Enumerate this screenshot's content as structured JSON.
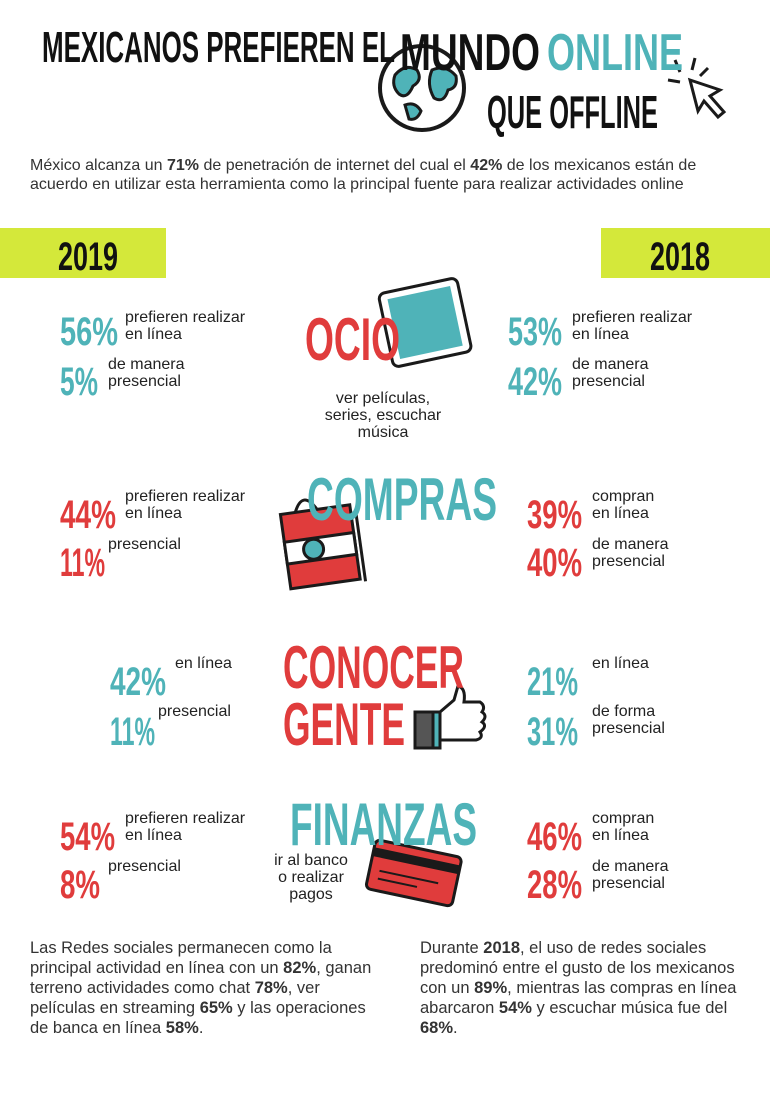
{
  "header": {
    "title_line1": "MEXICANOS PREFIEREN EL",
    "title_word1": "MUNDO",
    "title_word2": "ONLINE",
    "title_line2": "QUE OFFLINE"
  },
  "intro": [
    {
      "text": "México alcanza un ",
      "bold": false
    },
    {
      "text": "71%",
      "bold": true
    },
    {
      "text": " de penetración de internet del cual el ",
      "bold": false
    },
    {
      "text": "42%",
      "bold": true
    },
    {
      "text": " de los mexicanos están de acuerdo en utilizar esta herramienta como la principal fuente para realizar actividades online",
      "bold": false
    }
  ],
  "years": {
    "left": "2019",
    "right": "2018"
  },
  "sections": [
    {
      "title_lines": [
        "OCIO"
      ],
      "subtitle": "ver películas,\nseries, escuchar\nmúsica",
      "left": [
        {
          "value": "56%",
          "label": "prefieren realizar\nen línea"
        },
        {
          "value": "5%",
          "label": "de manera\npresencial"
        }
      ],
      "right": [
        {
          "value": "53%",
          "label": "prefieren realizar\nen línea"
        },
        {
          "value": "42%",
          "label": "de manera\npresencial"
        }
      ]
    },
    {
      "title_lines": [
        "COMPRAS"
      ],
      "left": [
        {
          "value": "44%",
          "label": "prefieren realizar\nen línea"
        },
        {
          "value": "11%",
          "label": "presencial"
        }
      ],
      "right": [
        {
          "value": "39%",
          "label": "compran\nen línea"
        },
        {
          "value": "40%",
          "label": "de manera\npresencial"
        }
      ]
    },
    {
      "title_lines": [
        "CONOCER",
        "GENTE"
      ],
      "left": [
        {
          "value": "42%",
          "label": "en línea"
        },
        {
          "value": "11%",
          "label": "presencial"
        }
      ],
      "right": [
        {
          "value": "21%",
          "label": "en línea"
        },
        {
          "value": "31%",
          "label": "de forma\npresencial"
        }
      ]
    },
    {
      "title_lines": [
        "FINANZAS"
      ],
      "subtitle": "ir al banco\no realizar\npagos",
      "left": [
        {
          "value": "54%",
          "label": "prefieren realizar\nen línea"
        },
        {
          "value": "8%",
          "label": "presencial"
        }
      ],
      "right": [
        {
          "value": "46%",
          "label": "compran\nen línea"
        },
        {
          "value": "28%",
          "label": "de manera\npresencial"
        }
      ]
    }
  ],
  "footer": {
    "left": [
      {
        "text": "Las Redes sociales permanecen como la principal actividad en línea con un ",
        "bold": false
      },
      {
        "text": "82%",
        "bold": true
      },
      {
        "text": ", ganan terreno actividades como chat ",
        "bold": false
      },
      {
        "text": "78%",
        "bold": true
      },
      {
        "text": ", ver películas en streaming ",
        "bold": false
      },
      {
        "text": "65%",
        "bold": true
      },
      {
        "text": " y las operaciones de banca en línea ",
        "bold": false
      },
      {
        "text": "58%",
        "bold": true
      },
      {
        "text": ".",
        "bold": false
      }
    ],
    "right": [
      {
        "text": "Durante ",
        "bold": false
      },
      {
        "text": "2018",
        "bold": true
      },
      {
        "text": ", el uso de redes sociales predominó entre el gusto de los mexicanos con un ",
        "bold": false
      },
      {
        "text": "89%",
        "bold": true
      },
      {
        "text": ", mientras las compras en línea abarcaron ",
        "bold": false
      },
      {
        "text": "54%",
        "bold": true
      },
      {
        "text": " y escuchar música fue del ",
        "bold": false
      },
      {
        "text": "68%",
        "bold": true
      },
      {
        "text": ".",
        "bold": false
      }
    ]
  }
}
